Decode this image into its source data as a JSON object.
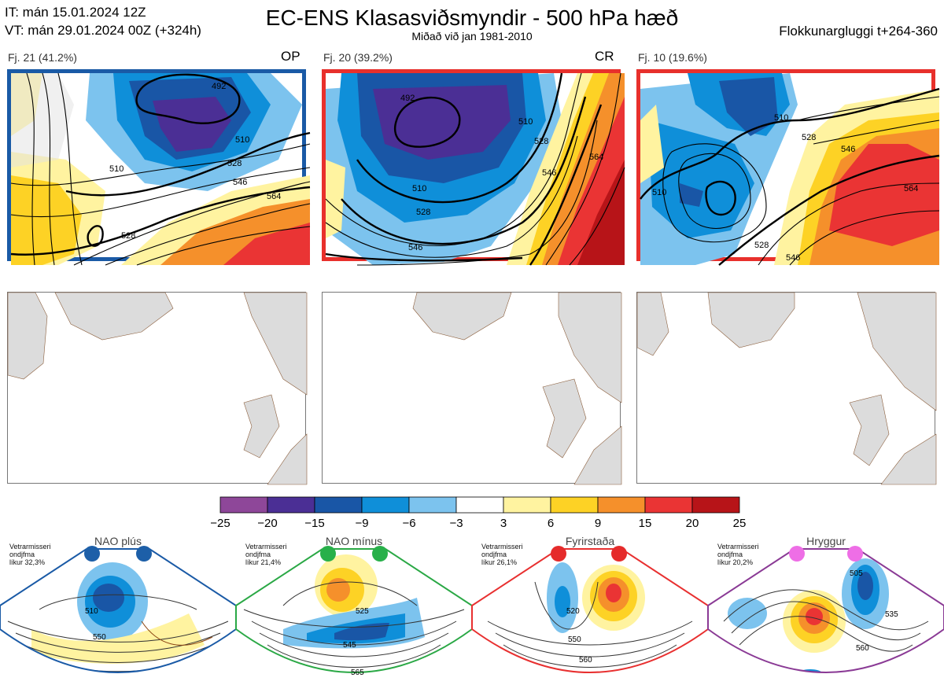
{
  "header": {
    "it_line": "IT: mán 15.01.2024 12Z",
    "vt_line": "VT: mán 29.01.2024 00Z  (+324h)",
    "title": "EC-ENS Klasasviðsmyndir - 500 hPa hæð",
    "subtitle": "Miðað við jan 1981-2010",
    "window": "Flokkunargluggi t+264-360"
  },
  "clusters": [
    {
      "label": "Fj. 21 (41.2%)",
      "members": 21,
      "percent": 41.2,
      "tag": "OP",
      "border_color": "#1a5aa6",
      "contour_labels": [
        "492",
        "510",
        "528",
        "546",
        "564",
        "510",
        "528"
      ]
    },
    {
      "label": "Fj. 20 (39.2%)",
      "members": 20,
      "percent": 39.2,
      "tag": "CR",
      "border_color": "#e8302c",
      "contour_labels": [
        "492",
        "510",
        "528",
        "546",
        "564",
        "510",
        "528",
        "546"
      ]
    },
    {
      "label": "Fj. 10 (19.6%)",
      "members": 10,
      "percent": 19.6,
      "tag": "",
      "border_color": "#e8302c",
      "contour_labels": [
        "510",
        "528",
        "546",
        "564",
        "510",
        "528",
        "546"
      ]
    }
  ],
  "chart_data": {
    "type": "heatmap",
    "title": "EC-ENS Klasasviðsmyndir - 500 hPa hæð",
    "variable": "500 hPa height anomaly",
    "colorbar": {
      "ticks": [
        -25,
        -20,
        -15,
        -9,
        -6,
        -3,
        3,
        6,
        9,
        15,
        20,
        25
      ],
      "colors": [
        "#8e4799",
        "#4b2f95",
        "#1956a6",
        "#0f8fd9",
        "#7cc3ee",
        "#ffffff",
        "#fff3a0",
        "#fdd225",
        "#f5902b",
        "#ea3434",
        "#b71418"
      ]
    }
  },
  "regimes": [
    {
      "title": "NAO plús",
      "prob_lines": [
        "Vetrarmisseri",
        "ondjfma",
        "líkur 32,3%"
      ],
      "probability": 32.3,
      "color": "#1a5aa6",
      "dot_color": "#1d5fa8",
      "labels": [
        "510",
        "550"
      ]
    },
    {
      "title": "NAO mínus",
      "prob_lines": [
        "Vetrarmisseri",
        "ondjfma",
        "líkur 21,4%"
      ],
      "probability": 21.4,
      "color": "#2aa845",
      "dot_color": "#28b04a",
      "labels": [
        "525",
        "545",
        "565"
      ]
    },
    {
      "title": "Fyrirstaða",
      "prob_lines": [
        "Vetrarmisseri",
        "ondjfma",
        "líkur 26,1%"
      ],
      "probability": 26.1,
      "color": "#e83030",
      "dot_color": "#e52b2b",
      "labels": [
        "520",
        "550",
        "560"
      ]
    },
    {
      "title": "Hryggur",
      "prob_lines": [
        "Vetrarmisseri",
        "ondjfma",
        "líkur 20,2%"
      ],
      "probability": 20.2,
      "color": "#8a3a95",
      "dot_color": "#ee6ee6",
      "labels": [
        "505",
        "535",
        "560"
      ]
    }
  ]
}
